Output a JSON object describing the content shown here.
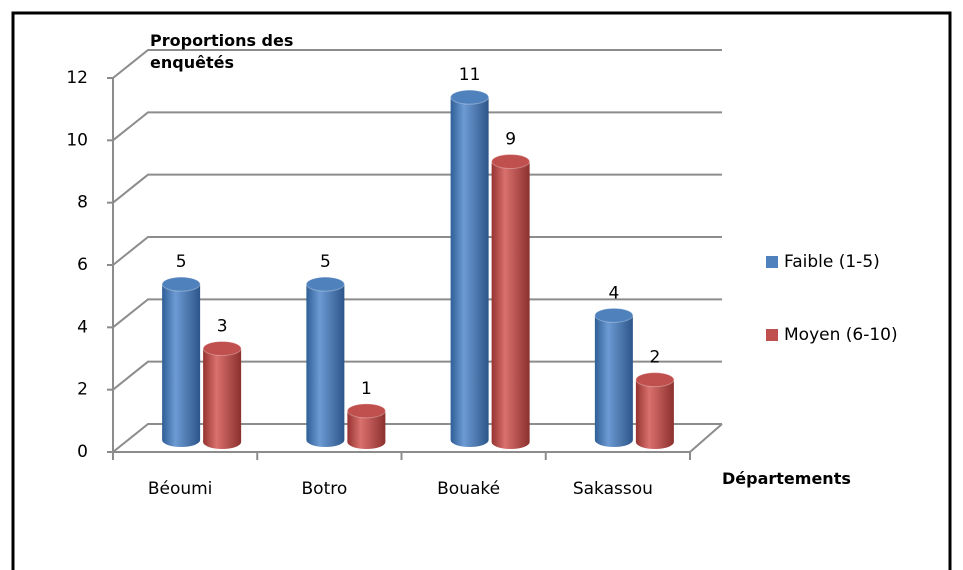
{
  "chart_data": {
    "type": "bar3d",
    "y_label": "Proportions des enquêtés",
    "x_label": "Départements",
    "categories": [
      "Béoumi",
      "Botro",
      "Bouaké",
      "Sakassou"
    ],
    "series": [
      {
        "name": "Faible (1-5)",
        "color": "#4f81bd",
        "values": [
          5,
          5,
          11,
          4
        ]
      },
      {
        "name": "Moyen (6-10)",
        "color": "#c0504d",
        "values": [
          3,
          1,
          9,
          2
        ]
      }
    ],
    "ylim": [
      0,
      12
    ],
    "yticks": [
      0,
      2,
      4,
      6,
      8,
      10,
      12
    ],
    "grid": true,
    "legend": "right"
  }
}
